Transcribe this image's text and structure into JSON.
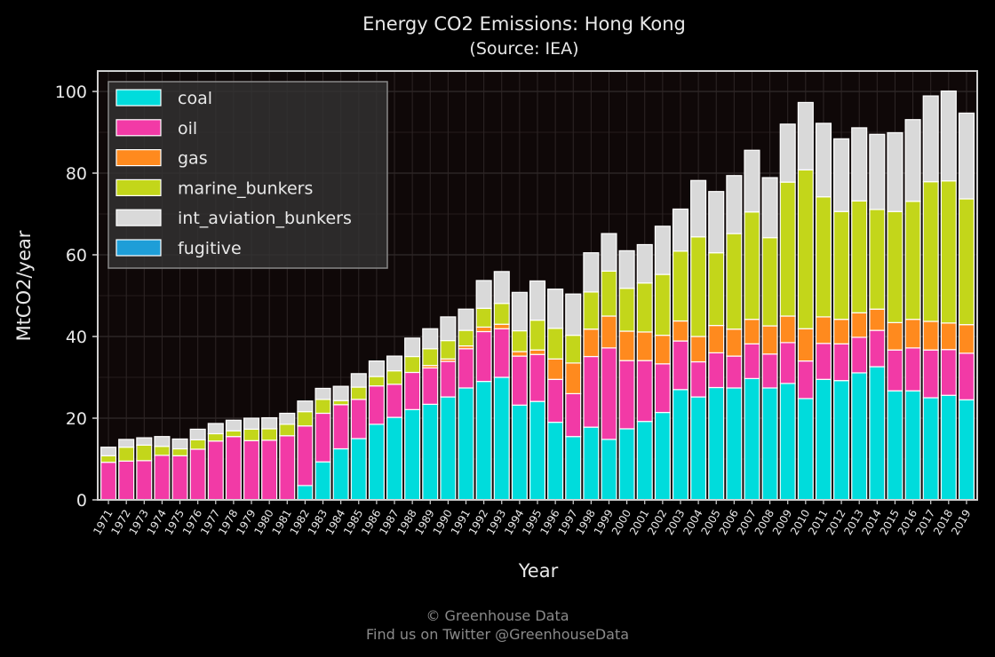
{
  "chart_data": {
    "type": "bar",
    "stacked": true,
    "title": "Energy CO2 Emissions: Hong Kong",
    "subtitle": "(Source: IEA)",
    "xlabel": "Year",
    "ylabel": "MtCO2/year",
    "ylim": [
      0,
      105
    ],
    "yticks": [
      0,
      20,
      40,
      60,
      80,
      100
    ],
    "grid": true,
    "legend_position": "top-left",
    "categories": [
      "1971",
      "1972",
      "1973",
      "1974",
      "1975",
      "1976",
      "1977",
      "1978",
      "1979",
      "1980",
      "1981",
      "1982",
      "1983",
      "1984",
      "1985",
      "1986",
      "1987",
      "1988",
      "1989",
      "1990",
      "1991",
      "1992",
      "1993",
      "1994",
      "1995",
      "1996",
      "1997",
      "1998",
      "1999",
      "2000",
      "2001",
      "2002",
      "2003",
      "2004",
      "2005",
      "2006",
      "2007",
      "2008",
      "2009",
      "2010",
      "2011",
      "2012",
      "2013",
      "2014",
      "2015",
      "2016",
      "2017",
      "2018",
      "2019"
    ],
    "series": [
      {
        "name": "coal",
        "color": "#00dcdc",
        "values": [
          0,
          0,
          0,
          0,
          0,
          0,
          0,
          0,
          0,
          0,
          0,
          3.5,
          9.3,
          12.5,
          15,
          18.5,
          20.2,
          22.1,
          23.4,
          25.2,
          27.4,
          29,
          30,
          23.2,
          24.1,
          19,
          15.5,
          17.8,
          14.8,
          17.4,
          19.2,
          21.4,
          27,
          25.2,
          27.5,
          27.4,
          29.7,
          27.4,
          28.5,
          24.8,
          29.5,
          29.2,
          31.1,
          32.6,
          26.7,
          26.7,
          25,
          25.6,
          24.5
        ]
      },
      {
        "name": "oil",
        "color": "#f23aa6",
        "values": [
          9.2,
          9.5,
          9.6,
          10.9,
          10.8,
          12.4,
          14.4,
          15.5,
          14.5,
          14.6,
          15.7,
          14.6,
          11.9,
          10.8,
          9.6,
          9.4,
          8.1,
          9.1,
          8.9,
          8.7,
          9.6,
          12.2,
          11.9,
          12,
          11.5,
          10.5,
          10.5,
          17.3,
          22.4,
          16.7,
          14.9,
          11.9,
          11.9,
          8.6,
          8.5,
          7.8,
          8.5,
          8.3,
          10,
          9.2,
          8.8,
          9,
          8.7,
          8.9,
          10,
          10.5,
          11.7,
          11.2,
          11.4
        ]
      },
      {
        "name": "gas",
        "color": "#ff8a1e",
        "values": [
          0,
          0,
          0,
          0,
          0,
          0,
          0,
          0,
          0,
          0,
          0,
          0,
          0,
          0,
          0,
          0,
          0,
          0,
          0.6,
          0.6,
          0.7,
          1.1,
          1.1,
          1.1,
          1.1,
          5,
          7.5,
          6.7,
          7.8,
          7.2,
          7,
          7,
          4.9,
          6.2,
          6.7,
          6.6,
          6,
          6.9,
          6.5,
          7.9,
          6.5,
          6,
          6,
          5.2,
          6.7,
          7,
          7,
          6.5,
          7
        ]
      },
      {
        "name": "marine_bunkers",
        "color": "#c3d61a",
        "values": [
          1.6,
          3.4,
          3.8,
          2.2,
          1.7,
          2.3,
          1.8,
          1.4,
          2.8,
          2.8,
          2.8,
          3.5,
          3.4,
          1,
          3,
          2.3,
          3.3,
          3.9,
          4.1,
          4.5,
          3.8,
          4.6,
          5.1,
          5.1,
          7.3,
          7.5,
          6.8,
          9.1,
          11,
          10.5,
          12,
          14.9,
          17.1,
          24.4,
          17.8,
          23.4,
          26.3,
          21.6,
          32.8,
          38.9,
          29.4,
          26.4,
          27.4,
          24.4,
          27.2,
          28.9,
          34.2,
          34.8,
          30.8
        ]
      },
      {
        "name": "int_aviation_bunkers",
        "color": "#d9d9d9",
        "values": [
          2.1,
          1.9,
          1.8,
          2.4,
          2.4,
          2.6,
          2.5,
          2.6,
          2.7,
          2.7,
          2.7,
          2.6,
          2.7,
          3.5,
          3.3,
          3.8,
          3.6,
          4.5,
          4.9,
          5.8,
          5.2,
          6.8,
          7.8,
          9.4,
          9.6,
          9.6,
          10.1,
          9.6,
          9.2,
          9.2,
          9.4,
          11.8,
          10.3,
          13.8,
          15,
          14.2,
          15.1,
          14.7,
          14.2,
          16.5,
          18,
          17.8,
          17.9,
          18.4,
          19.3,
          20,
          21,
          22,
          21
        ]
      },
      {
        "name": "fugitive",
        "color": "#1e9ed8",
        "values": [
          0,
          0,
          0,
          0,
          0,
          0,
          0,
          0,
          0,
          0,
          0,
          0,
          0,
          0,
          0,
          0,
          0,
          0,
          0,
          0,
          0,
          0,
          0,
          0,
          0,
          0,
          0,
          0,
          0,
          0,
          0,
          0,
          0,
          0,
          0,
          0,
          0,
          0,
          0,
          0,
          0,
          0,
          0,
          0,
          0,
          0,
          0,
          0,
          0
        ]
      }
    ]
  },
  "footer": {
    "line1": "© Greenhouse Data",
    "line2": "Find us on Twitter @GreenhouseData"
  }
}
